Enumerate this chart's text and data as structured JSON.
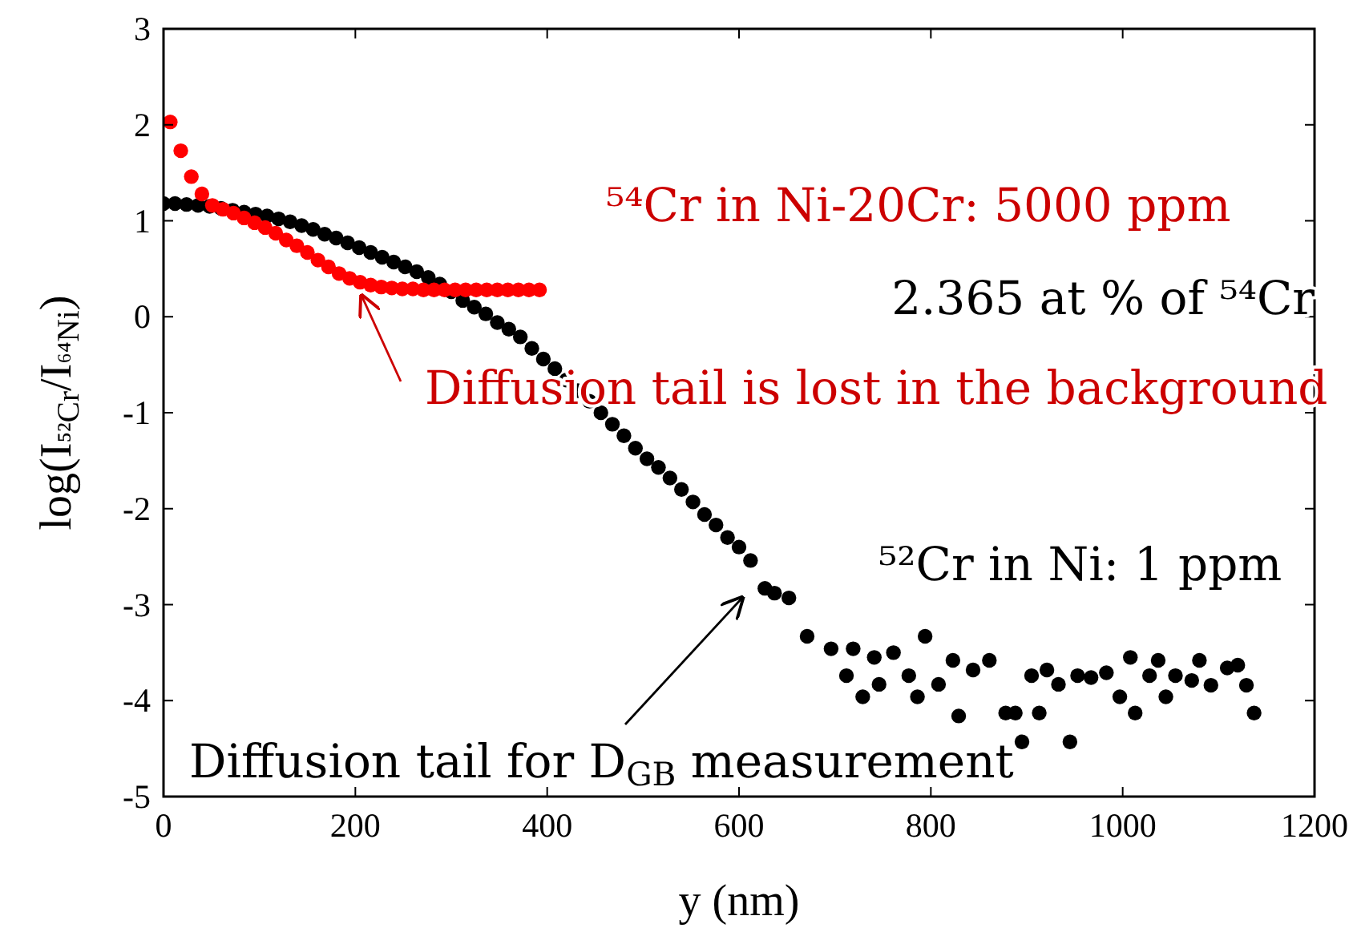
{
  "chart_data": {
    "type": "scatter",
    "xlabel": "y (nm)",
    "ylabel": "log(I$_{⁵²Cr}$/I$_{⁶⁴Ni}$)",
    "xlim": [
      0,
      1200
    ],
    "ylim": [
      -5,
      3
    ],
    "xticks": [
      0,
      200,
      400,
      600,
      800,
      1000,
      1200
    ],
    "yticks": [
      -5,
      -4,
      -3,
      -2,
      -1,
      0,
      1,
      2,
      3
    ],
    "grid": false,
    "marker": "circle",
    "series": [
      {
        "color": "#000000",
        "x": [
          0,
          12,
          24,
          36,
          48,
          60,
          72,
          84,
          96,
          108,
          120,
          132,
          144,
          156,
          168,
          180,
          192,
          204,
          216,
          228,
          240,
          252,
          264,
          276,
          288,
          300,
          312,
          324,
          336,
          348,
          360,
          372,
          384,
          396,
          408,
          420,
          432,
          444,
          456,
          468,
          480,
          492,
          504,
          516,
          528,
          540,
          552,
          564,
          576,
          588,
          600,
          612,
          627,
          637,
          652,
          671,
          696,
          712,
          719,
          729,
          741,
          746,
          761,
          777,
          786,
          794,
          808,
          823,
          829,
          844,
          861,
          878,
          888,
          895,
          905,
          913,
          921,
          933,
          945,
          953,
          967,
          983,
          997,
          1008,
          1013,
          1028,
          1037,
          1045,
          1055,
          1072,
          1080,
          1092,
          1109,
          1120,
          1129,
          1137
        ],
        "values": [
          1.18,
          1.18,
          1.17,
          1.16,
          1.15,
          1.13,
          1.11,
          1.09,
          1.07,
          1.05,
          1.02,
          0.99,
          0.95,
          0.91,
          0.86,
          0.82,
          0.77,
          0.72,
          0.67,
          0.62,
          0.57,
          0.52,
          0.47,
          0.41,
          0.34,
          0.26,
          0.17,
          0.1,
          0.03,
          -0.06,
          -0.13,
          -0.21,
          -0.33,
          -0.44,
          -0.54,
          -0.66,
          -0.77,
          -0.88,
          -1.0,
          -1.12,
          -1.24,
          -1.37,
          -1.48,
          -1.57,
          -1.68,
          -1.8,
          -1.93,
          -2.06,
          -2.17,
          -2.3,
          -2.4,
          -2.54,
          -2.83,
          -2.88,
          -2.93,
          -3.33,
          -3.46,
          -3.74,
          -3.46,
          -3.96,
          -3.55,
          -3.83,
          -3.5,
          -3.74,
          -3.96,
          -3.33,
          -3.83,
          -3.58,
          -4.16,
          -3.68,
          -3.58,
          -4.13,
          -4.13,
          -4.43,
          -3.74,
          -4.13,
          -3.68,
          -3.83,
          -4.43,
          -3.74,
          -3.76,
          -3.71,
          -3.96,
          -3.55,
          -4.13,
          -3.74,
          -3.58,
          -3.96,
          -3.74,
          -3.79,
          -3.58,
          -3.84,
          -3.66,
          -3.63,
          -3.84,
          -4.13
        ]
      },
      {
        "color": "#ff0000",
        "x": [
          7,
          18,
          29,
          40,
          51,
          62,
          73,
          84,
          95,
          106,
          117,
          128,
          139,
          150,
          161,
          172,
          183,
          194,
          205,
          216,
          227,
          238,
          249,
          260,
          271,
          282,
          293,
          304,
          315,
          326,
          337,
          348,
          359,
          370,
          381,
          392
        ],
        "values": [
          2.03,
          1.73,
          1.46,
          1.28,
          1.16,
          1.12,
          1.08,
          1.03,
          0.98,
          0.93,
          0.87,
          0.8,
          0.74,
          0.67,
          0.59,
          0.52,
          0.45,
          0.4,
          0.36,
          0.33,
          0.31,
          0.3,
          0.29,
          0.29,
          0.28,
          0.28,
          0.28,
          0.28,
          0.28,
          0.28,
          0.28,
          0.28,
          0.28,
          0.28,
          0.28,
          0.28
        ]
      }
    ],
    "annotations": [
      "⁵⁴Cr in Ni-20Cr: 5000 ppm",
      "2.365 at % of ⁵⁴Cr",
      {
        "text": "Diffusion tail is lost in the background",
        "x": 200,
        "y": 0.3
      },
      "⁵²Cr in Ni: 1 ppm",
      "Diffusion tail for D$_{GB}$ measurement"
    ]
  }
}
